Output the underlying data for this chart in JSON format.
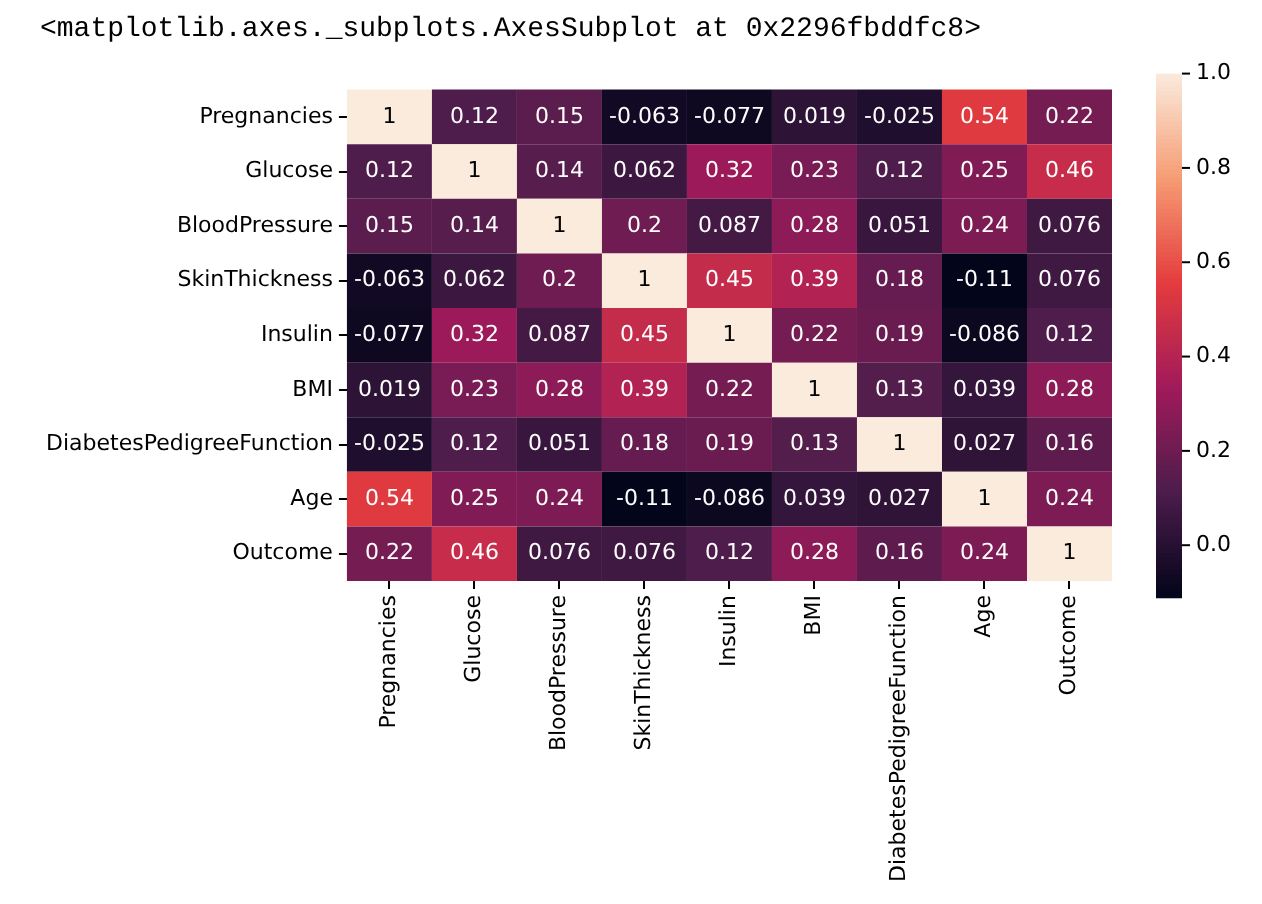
{
  "chart_data": {
    "type": "heatmap",
    "title": "<matplotlib.axes._subplots.AxesSubplot at 0x2296fbddfc8>",
    "categories": [
      "Pregnancies",
      "Glucose",
      "BloodPressure",
      "SkinThickness",
      "Insulin",
      "BMI",
      "DiabetesPedigreeFunction",
      "Age",
      "Outcome"
    ],
    "y_categories": [
      "Pregnancies",
      "Glucose",
      "BloodPressure",
      "SkinThickness",
      "Insulin",
      "BMI",
      "DiabetesPedigreeFunction",
      "Age",
      "Outcome"
    ],
    "cells": [
      [
        1,
        0.12,
        0.15,
        -0.063,
        -0.077,
        0.019,
        -0.025,
        0.54,
        0.22
      ],
      [
        0.12,
        1,
        0.14,
        0.062,
        0.32,
        0.23,
        0.12,
        0.25,
        0.46
      ],
      [
        0.15,
        0.14,
        1,
        0.2,
        0.087,
        0.28,
        0.051,
        0.24,
        0.076
      ],
      [
        -0.063,
        0.062,
        0.2,
        1,
        0.45,
        0.39,
        0.18,
        -0.11,
        0.076
      ],
      [
        -0.077,
        0.32,
        0.087,
        0.45,
        1,
        0.22,
        0.19,
        -0.086,
        0.12
      ],
      [
        0.019,
        0.23,
        0.28,
        0.39,
        0.22,
        1,
        0.13,
        0.039,
        0.28
      ],
      [
        -0.025,
        0.12,
        0.051,
        0.18,
        0.19,
        0.13,
        1,
        0.027,
        0.16
      ],
      [
        0.54,
        0.25,
        0.24,
        -0.11,
        -0.086,
        0.039,
        0.027,
        1,
        0.24
      ],
      [
        0.22,
        0.46,
        0.076,
        0.076,
        0.12,
        0.28,
        0.16,
        0.24,
        1
      ]
    ],
    "clim": [
      -0.11,
      1
    ],
    "cticks": [
      {
        "value": 0,
        "label": "0.0"
      },
      {
        "value": 0.2,
        "label": "0.2"
      },
      {
        "value": 0.4,
        "label": "0.4"
      },
      {
        "value": 0.6,
        "label": "0.6"
      },
      {
        "value": 0.8,
        "label": "0.8"
      },
      {
        "value": 1,
        "label": "1.0"
      }
    ],
    "data_labels": true
  }
}
